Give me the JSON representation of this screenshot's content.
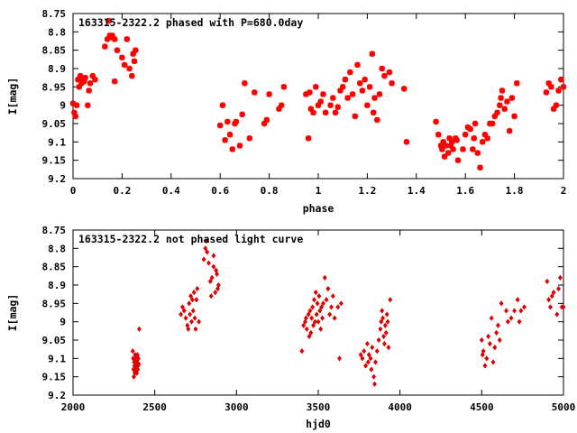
{
  "chart_data": [
    {
      "type": "scatter",
      "title": "163315-2322.2 phased with P=680.0day",
      "xlabel": "phase",
      "ylabel": "I[mag]",
      "xlim": [
        0,
        2
      ],
      "ylim": [
        8.75,
        9.2
      ],
      "y_inverted": true,
      "x_ticks": [
        "0",
        "0.2",
        "0.4",
        "0.6",
        "0.8",
        "1",
        "1.2",
        "1.4",
        "1.6",
        "1.8",
        "2"
      ],
      "y_ticks": [
        "8.75",
        "8.8",
        "8.85",
        "8.9",
        "8.95",
        "9",
        "9.05",
        "9.1",
        "9.15",
        "9.2"
      ],
      "marker": "asterisk",
      "color": "#ff0000",
      "points": [
        [
          0.0,
          8.995
        ],
        [
          0.005,
          9.02
        ],
        [
          0.01,
          9.03
        ],
        [
          0.015,
          9.0
        ],
        [
          0.02,
          8.93
        ],
        [
          0.025,
          8.95
        ],
        [
          0.03,
          8.92
        ],
        [
          0.035,
          8.94
        ],
        [
          0.04,
          8.93
        ],
        [
          0.045,
          8.935
        ],
        [
          0.05,
          8.925
        ],
        [
          0.06,
          9.0
        ],
        [
          0.065,
          8.96
        ],
        [
          0.07,
          8.94
        ],
        [
          0.08,
          8.92
        ],
        [
          0.09,
          8.93
        ],
        [
          0.13,
          8.84
        ],
        [
          0.14,
          8.82
        ],
        [
          0.145,
          8.77
        ],
        [
          0.15,
          8.81
        ],
        [
          0.155,
          8.815
        ],
        [
          0.16,
          8.81
        ],
        [
          0.17,
          8.82
        ],
        [
          0.17,
          8.935
        ],
        [
          0.18,
          8.85
        ],
        [
          0.2,
          8.87
        ],
        [
          0.21,
          8.89
        ],
        [
          0.22,
          8.82
        ],
        [
          0.23,
          8.9
        ],
        [
          0.24,
          8.92
        ],
        [
          0.245,
          8.86
        ],
        [
          0.25,
          8.88
        ],
        [
          0.255,
          8.85
        ],
        [
          0.6,
          9.055
        ],
        [
          0.61,
          9.0
        ],
        [
          0.62,
          9.095
        ],
        [
          0.63,
          9.045
        ],
        [
          0.64,
          9.08
        ],
        [
          0.65,
          9.12
        ],
        [
          0.66,
          9.05
        ],
        [
          0.665,
          9.045
        ],
        [
          0.68,
          9.11
        ],
        [
          0.69,
          9.025
        ],
        [
          0.7,
          8.94
        ],
        [
          0.72,
          9.09
        ],
        [
          0.74,
          8.965
        ],
        [
          0.78,
          9.05
        ],
        [
          0.79,
          9.04
        ],
        [
          0.8,
          8.97
        ],
        [
          0.85,
          9.0
        ],
        [
          0.86,
          8.95
        ],
        [
          0.84,
          9.01
        ],
        [
          0.95,
          8.97
        ],
        [
          0.96,
          9.09
        ],
        [
          0.965,
          8.965
        ],
        [
          0.97,
          9.01
        ],
        [
          0.98,
          9.02
        ],
        [
          0.99,
          8.95
        ],
        [
          1.0,
          9.0
        ],
        [
          1.01,
          8.99
        ],
        [
          1.02,
          8.97
        ],
        [
          1.03,
          9.02
        ],
        [
          1.05,
          9.0
        ],
        [
          1.06,
          8.98
        ],
        [
          1.07,
          9.02
        ],
        [
          1.08,
          9.005
        ],
        [
          1.09,
          8.96
        ],
        [
          1.1,
          8.95
        ],
        [
          1.11,
          8.93
        ],
        [
          1.12,
          8.98
        ],
        [
          1.13,
          8.91
        ],
        [
          1.14,
          8.97
        ],
        [
          1.15,
          9.03
        ],
        [
          1.16,
          8.89
        ],
        [
          1.17,
          8.94
        ],
        [
          1.18,
          8.96
        ],
        [
          1.19,
          8.93
        ],
        [
          1.2,
          9.0
        ],
        [
          1.21,
          8.95
        ],
        [
          1.22,
          8.86
        ],
        [
          1.225,
          9.02
        ],
        [
          1.23,
          8.98
        ],
        [
          1.24,
          9.04
        ],
        [
          1.25,
          8.97
        ],
        [
          1.26,
          8.9
        ],
        [
          1.27,
          8.92
        ],
        [
          1.29,
          8.91
        ],
        [
          1.3,
          8.94
        ],
        [
          1.35,
          8.955
        ],
        [
          1.36,
          9.1
        ],
        [
          1.48,
          9.045
        ],
        [
          1.49,
          9.08
        ],
        [
          1.5,
          9.11
        ],
        [
          1.505,
          9.12
        ],
        [
          1.51,
          9.1
        ],
        [
          1.515,
          9.14
        ],
        [
          1.52,
          9.11
        ],
        [
          1.53,
          9.13
        ],
        [
          1.535,
          9.09
        ],
        [
          1.54,
          9.11
        ],
        [
          1.545,
          9.1
        ],
        [
          1.55,
          9.12
        ],
        [
          1.56,
          9.09
        ],
        [
          1.565,
          9.095
        ],
        [
          1.57,
          9.15
        ],
        [
          1.59,
          9.12
        ],
        [
          1.6,
          9.08
        ],
        [
          1.61,
          9.06
        ],
        [
          1.62,
          9.065
        ],
        [
          1.63,
          9.12
        ],
        [
          1.635,
          9.09
        ],
        [
          1.64,
          9.05
        ],
        [
          1.65,
          9.13
        ],
        [
          1.66,
          9.17
        ],
        [
          1.67,
          9.1
        ],
        [
          1.68,
          9.08
        ],
        [
          1.69,
          9.09
        ],
        [
          1.7,
          9.05
        ],
        [
          1.71,
          9.05
        ],
        [
          1.72,
          9.03
        ],
        [
          1.73,
          9.02
        ],
        [
          1.74,
          9.0
        ],
        [
          1.745,
          8.98
        ],
        [
          1.75,
          8.96
        ],
        [
          1.76,
          9.01
        ],
        [
          1.77,
          8.99
        ],
        [
          1.78,
          9.07
        ],
        [
          1.79,
          8.98
        ],
        [
          1.8,
          9.03
        ],
        [
          1.81,
          8.94
        ],
        [
          1.93,
          8.965
        ],
        [
          1.94,
          8.94
        ],
        [
          1.95,
          8.95
        ],
        [
          1.96,
          9.01
        ],
        [
          1.97,
          9.0
        ],
        [
          1.98,
          8.96
        ],
        [
          1.99,
          8.93
        ],
        [
          2.0,
          8.95
        ]
      ]
    },
    {
      "type": "scatter",
      "title": "163315-2322.2 not phased light curve",
      "xlabel": "hjd0",
      "ylabel": "I[mag]",
      "xlim": [
        2000,
        5000
      ],
      "ylim": [
        8.75,
        9.2
      ],
      "y_inverted": true,
      "x_ticks": [
        "2000",
        "2500",
        "3000",
        "3500",
        "4000",
        "4500",
        "5000"
      ],
      "y_ticks": [
        "8.75",
        "8.8",
        "8.85",
        "8.9",
        "8.95",
        "9",
        "9.05",
        "9.1",
        "9.15",
        "9.2"
      ],
      "marker": "diamond",
      "color": "#dd0000",
      "points": [
        [
          2365,
          9.08
        ],
        [
          2368,
          9.1
        ],
        [
          2370,
          9.13
        ],
        [
          2372,
          9.15
        ],
        [
          2374,
          9.11
        ],
        [
          2376,
          9.12
        ],
        [
          2378,
          9.14
        ],
        [
          2380,
          9.09
        ],
        [
          2382,
          9.13
        ],
        [
          2384,
          9.1
        ],
        [
          2386,
          9.12
        ],
        [
          2388,
          9.11
        ],
        [
          2390,
          9.14
        ],
        [
          2392,
          9.105
        ],
        [
          2394,
          9.09
        ],
        [
          2396,
          9.13
        ],
        [
          2398,
          9.12
        ],
        [
          2400,
          9.1
        ],
        [
          2402,
          9.115
        ],
        [
          2405,
          9.02
        ],
        [
          2660,
          8.98
        ],
        [
          2670,
          8.96
        ],
        [
          2680,
          8.97
        ],
        [
          2690,
          8.99
        ],
        [
          2700,
          9.01
        ],
        [
          2705,
          9.02
        ],
        [
          2710,
          8.95
        ],
        [
          2715,
          8.98
        ],
        [
          2720,
          8.93
        ],
        [
          2725,
          9.0
        ],
        [
          2730,
          8.94
        ],
        [
          2735,
          8.97
        ],
        [
          2740,
          8.92
        ],
        [
          2745,
          8.99
        ],
        [
          2750,
          9.02
        ],
        [
          2755,
          8.94
        ],
        [
          2760,
          8.91
        ],
        [
          2770,
          9.0
        ],
        [
          2800,
          8.83
        ],
        [
          2810,
          8.8
        ],
        [
          2815,
          8.78
        ],
        [
          2820,
          8.81
        ],
        [
          2830,
          8.84
        ],
        [
          2840,
          8.89
        ],
        [
          2845,
          8.93
        ],
        [
          2850,
          8.88
        ],
        [
          2860,
          8.85
        ],
        [
          2870,
          8.92
        ],
        [
          2875,
          8.86
        ],
        [
          2880,
          8.87
        ],
        [
          2885,
          8.91
        ],
        [
          2890,
          8.9
        ],
        [
          2860,
          8.82
        ],
        [
          3400,
          9.08
        ],
        [
          3410,
          9.01
        ],
        [
          3420,
          9.0
        ],
        [
          3425,
          8.99
        ],
        [
          3430,
          9.02
        ],
        [
          3440,
          8.98
        ],
        [
          3445,
          9.04
        ],
        [
          3450,
          8.97
        ],
        [
          3455,
          9.03
        ],
        [
          3460,
          8.99
        ],
        [
          3465,
          8.96
        ],
        [
          3470,
          9.01
        ],
        [
          3475,
          8.94
        ],
        [
          3480,
          9.0
        ],
        [
          3485,
          8.92
        ],
        [
          3490,
          8.98
        ],
        [
          3495,
          8.95
        ],
        [
          3500,
          9.0
        ],
        [
          3505,
          8.93
        ],
        [
          3510,
          8.97
        ],
        [
          3515,
          9.02
        ],
        [
          3520,
          8.96
        ],
        [
          3525,
          8.99
        ],
        [
          3530,
          8.95
        ],
        [
          3540,
          8.88
        ],
        [
          3550,
          8.94
        ],
        [
          3560,
          8.91
        ],
        [
          3570,
          8.98
        ],
        [
          3580,
          8.96
        ],
        [
          3590,
          8.93
        ],
        [
          3600,
          8.99
        ],
        [
          3620,
          8.96
        ],
        [
          3630,
          9.1
        ],
        [
          3640,
          8.95
        ],
        [
          3760,
          9.09
        ],
        [
          3770,
          9.1
        ],
        [
          3780,
          9.08
        ],
        [
          3790,
          9.12
        ],
        [
          3800,
          9.06
        ],
        [
          3805,
          9.11
        ],
        [
          3810,
          9.09
        ],
        [
          3820,
          9.1
        ],
        [
          3825,
          9.13
        ],
        [
          3830,
          9.07
        ],
        [
          3840,
          9.15
        ],
        [
          3845,
          9.17
        ],
        [
          3850,
          9.11
        ],
        [
          3860,
          9.08
        ],
        [
          3870,
          9.05
        ],
        [
          3880,
          9.02
        ],
        [
          3885,
          9.0
        ],
        [
          3890,
          8.97
        ],
        [
          3895,
          8.99
        ],
        [
          3900,
          9.04
        ],
        [
          3905,
          9.06
        ],
        [
          3910,
          9.01
        ],
        [
          3915,
          9.03
        ],
        [
          3920,
          8.98
        ],
        [
          3925,
          9.0
        ],
        [
          3930,
          9.07
        ],
        [
          3940,
          8.94
        ],
        [
          4500,
          9.05
        ],
        [
          4505,
          9.09
        ],
        [
          4510,
          9.08
        ],
        [
          4520,
          9.12
        ],
        [
          4530,
          9.1
        ],
        [
          4540,
          9.04
        ],
        [
          4550,
          9.06
        ],
        [
          4560,
          8.99
        ],
        [
          4570,
          9.11
        ],
        [
          4580,
          9.07
        ],
        [
          4590,
          9.03
        ],
        [
          4600,
          9.01
        ],
        [
          4610,
          9.05
        ],
        [
          4620,
          8.95
        ],
        [
          4650,
          8.97
        ],
        [
          4660,
          9.0
        ],
        [
          4680,
          8.99
        ],
        [
          4700,
          8.97
        ],
        [
          4720,
          8.94
        ],
        [
          4730,
          9.0
        ],
        [
          4740,
          8.97
        ],
        [
          4760,
          8.96
        ],
        [
          4900,
          8.89
        ],
        [
          4910,
          8.94
        ],
        [
          4920,
          8.96
        ],
        [
          4930,
          8.93
        ],
        [
          4940,
          8.92
        ],
        [
          4960,
          8.98
        ],
        [
          4970,
          8.91
        ],
        [
          4980,
          8.88
        ],
        [
          4990,
          8.96
        ],
        [
          5000,
          8.96
        ]
      ]
    }
  ]
}
